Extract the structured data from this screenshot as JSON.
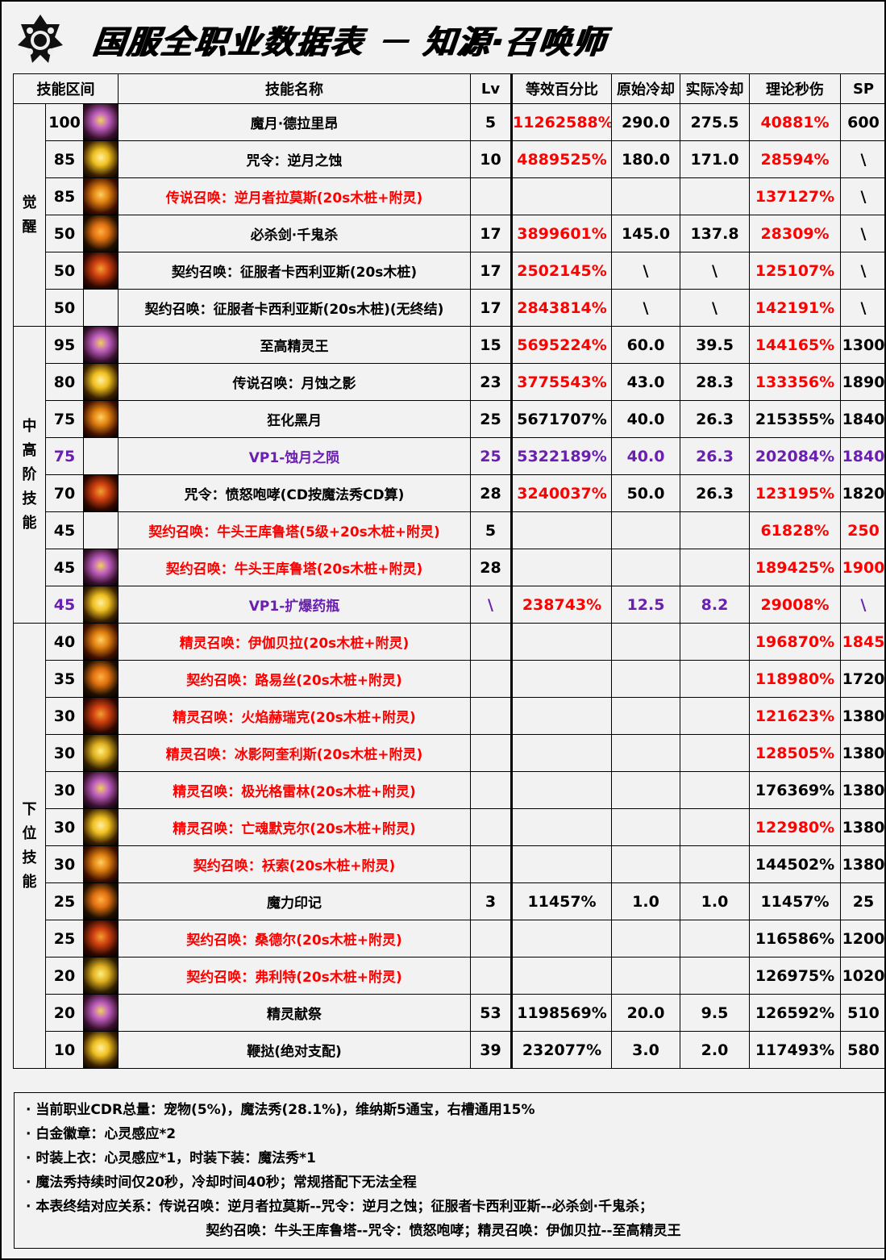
{
  "title": "国服全职业数据表 － 知源·召唤师",
  "columns": [
    "技能区间",
    "技能名称",
    "Lv",
    "等效百分比",
    "原始冷却",
    "实际冷却",
    "理论秒伤",
    "SP"
  ],
  "colors": {
    "red": "#ff0000",
    "purple": "#6a1fb0",
    "text": "#000000",
    "background": "#f2f2f2"
  },
  "sections": [
    {
      "label": "觉醒",
      "rows": 6
    },
    {
      "label": "中高阶技能",
      "rows": 8
    },
    {
      "label": "下位技能",
      "rows": 12
    }
  ],
  "rows": [
    {
      "level": "100",
      "icon": "purple-moon-icon",
      "name": "魔月·德拉里昂",
      "lv": "5",
      "pct": "11262588%",
      "ocd": "290.0",
      "acd": "275.5",
      "dps": "40881%",
      "sp": "600",
      "c": {
        "pct": "r",
        "dps": "r"
      }
    },
    {
      "level": "85",
      "icon": "gold-crescent-icon",
      "name": "咒令：逆月之蚀",
      "lv": "10",
      "pct": "4889525%",
      "ocd": "180.0",
      "acd": "171.0",
      "dps": "28594%",
      "sp": "\\",
      "c": {
        "pct": "r",
        "dps": "r"
      }
    },
    {
      "level": "85",
      "icon": "fire-swirl-icon",
      "name": "传说召唤：逆月者拉莫斯(20s木桩+附灵)",
      "lv": "",
      "pct": "",
      "ocd": "",
      "acd": "",
      "dps": "137127%",
      "sp": "\\",
      "c": {
        "name": "r",
        "dps": "r"
      }
    },
    {
      "level": "50",
      "icon": "sword-slash-icon",
      "name": "必杀剑·千鬼杀",
      "lv": "17",
      "pct": "3899601%",
      "ocd": "145.0",
      "acd": "137.8",
      "dps": "28309%",
      "sp": "\\",
      "c": {
        "pct": "r",
        "dps": "r"
      }
    },
    {
      "level": "50",
      "icon": "demon-face-icon",
      "name": "契约召唤：征服者卡西利亚斯(20s木桩)",
      "lv": "17",
      "pct": "2502145%",
      "ocd": "\\",
      "acd": "\\",
      "dps": "125107%",
      "sp": "\\",
      "c": {
        "pct": "r",
        "dps": "r"
      }
    },
    {
      "level": "50",
      "icon": "",
      "name": "契约召唤：征服者卡西利亚斯(20s木桩)(无终结)",
      "lv": "17",
      "pct": "2843814%",
      "ocd": "\\",
      "acd": "\\",
      "dps": "142191%",
      "sp": "\\",
      "c": {
        "pct": "r",
        "dps": "r"
      }
    },
    {
      "level": "95",
      "icon": "spirit-king-icon",
      "name": "至高精灵王",
      "lv": "15",
      "pct": "5695224%",
      "ocd": "60.0",
      "acd": "39.5",
      "dps": "144165%",
      "sp": "1300",
      "c": {
        "pct": "r",
        "dps": "r"
      }
    },
    {
      "level": "80",
      "icon": "eclipse-shadow-icon",
      "name": "传说召唤：月蚀之影",
      "lv": "23",
      "pct": "3775543%",
      "ocd": "43.0",
      "acd": "28.3",
      "dps": "133356%",
      "sp": "1890",
      "c": {
        "pct": "r",
        "dps": "r"
      }
    },
    {
      "level": "75",
      "icon": "dark-moon-icon",
      "name": "狂化黑月",
      "lv": "25",
      "pct": "5671707%",
      "ocd": "40.0",
      "acd": "26.3",
      "dps": "215355%",
      "sp": "1840",
      "c": {}
    },
    {
      "level": "75",
      "icon": "",
      "name": "VP1-蚀月之陨",
      "lv": "25",
      "pct": "5322189%",
      "ocd": "40.0",
      "acd": "26.3",
      "dps": "202084%",
      "sp": "1840",
      "c": {
        "level": "p",
        "name": "p",
        "lv": "p",
        "pct": "p",
        "ocd": "p",
        "acd": "p",
        "dps": "p",
        "sp": "p"
      }
    },
    {
      "level": "70",
      "icon": "roaring-beast-icon",
      "name": "咒令：愤怒咆哮(CD按魔法秀CD算)",
      "lv": "28",
      "pct": "3240037%",
      "ocd": "50.0",
      "acd": "26.3",
      "dps": "123195%",
      "sp": "1820",
      "c": {
        "pct": "r",
        "dps": "r"
      }
    },
    {
      "level": "45",
      "icon": "",
      "name": "契约召唤：牛头王库鲁塔(5级+20s木桩+附灵)",
      "lv": "5",
      "pct": "",
      "ocd": "",
      "acd": "",
      "dps": "61828%",
      "sp": "250",
      "c": {
        "name": "r",
        "dps": "r",
        "sp": "r"
      }
    },
    {
      "level": "45",
      "icon": "minotaur-icon",
      "name": "契约召唤：牛头王库鲁塔(20s木桩+附灵)",
      "lv": "28",
      "pct": "",
      "ocd": "",
      "acd": "",
      "dps": "189425%",
      "sp": "1900",
      "c": {
        "name": "r",
        "dps": "r",
        "sp": "r"
      }
    },
    {
      "level": "45",
      "icon": "potion-flame-icon",
      "name": "VP1-扩爆药瓶",
      "lv": "\\",
      "pct": "238743%",
      "ocd": "12.5",
      "acd": "8.2",
      "dps": "29008%",
      "sp": "\\",
      "c": {
        "level": "p",
        "name": "p",
        "lv": "p",
        "pct": "r",
        "ocd": "p",
        "acd": "p",
        "dps": "r",
        "sp": "p"
      }
    },
    {
      "level": "40",
      "icon": "crown-icon",
      "name": "精灵召唤：伊伽贝拉(20s木桩+附灵)",
      "lv": "",
      "pct": "",
      "ocd": "",
      "acd": "",
      "dps": "196870%",
      "sp": "1845",
      "c": {
        "name": "r",
        "dps": "r",
        "sp": "r"
      }
    },
    {
      "level": "35",
      "icon": "star-circle-icon",
      "name": "契约召唤：路易丝(20s木桩+附灵)",
      "lv": "",
      "pct": "",
      "ocd": "",
      "acd": "",
      "dps": "118980%",
      "sp": "1720",
      "c": {
        "name": "r",
        "dps": "r"
      }
    },
    {
      "level": "30",
      "icon": "fire-spirit-icon",
      "name": "精灵召唤：火焰赫瑞克(20s木桩+附灵)",
      "lv": "",
      "pct": "",
      "ocd": "",
      "acd": "",
      "dps": "121623%",
      "sp": "1380",
      "c": {
        "name": "r",
        "dps": "r"
      }
    },
    {
      "level": "30",
      "icon": "ice-spirit-icon",
      "name": "精灵召唤：冰影阿奎利斯(20s木桩+附灵)",
      "lv": "",
      "pct": "",
      "ocd": "",
      "acd": "",
      "dps": "128505%",
      "sp": "1380",
      "c": {
        "name": "r",
        "dps": "r"
      }
    },
    {
      "level": "30",
      "icon": "light-spirit-icon",
      "name": "精灵召唤：极光格雷林(20s木桩+附灵)",
      "lv": "",
      "pct": "",
      "ocd": "",
      "acd": "",
      "dps": "176369%",
      "sp": "1380",
      "c": {
        "name": "r"
      }
    },
    {
      "level": "30",
      "icon": "dark-spirit-icon",
      "name": "精灵召唤：亡魂默克尔(20s木桩+附灵)",
      "lv": "",
      "pct": "",
      "ocd": "",
      "acd": "",
      "dps": "122980%",
      "sp": "1380",
      "c": {
        "name": "r",
        "dps": "r"
      }
    },
    {
      "level": "30",
      "icon": "flower-rune-icon",
      "name": "契约召唤：袄索(20s木桩+附灵)",
      "lv": "",
      "pct": "",
      "ocd": "",
      "acd": "",
      "dps": "144502%",
      "sp": "1380",
      "c": {
        "name": "r"
      }
    },
    {
      "level": "25",
      "icon": "magic-mark-icon",
      "name": "魔力印记",
      "lv": "3",
      "pct": "11457%",
      "ocd": "1.0",
      "acd": "1.0",
      "dps": "11457%",
      "sp": "25",
      "c": {}
    },
    {
      "level": "25",
      "icon": "shield-icon",
      "name": "契约召唤：桑德尔(20s木桩+附灵)",
      "lv": "",
      "pct": "",
      "ocd": "",
      "acd": "",
      "dps": "116586%",
      "sp": "1200",
      "c": {
        "name": "r"
      }
    },
    {
      "level": "20",
      "icon": "bird-icon",
      "name": "契约召唤：弗利特(20s木桩+附灵)",
      "lv": "",
      "pct": "",
      "ocd": "",
      "acd": "",
      "dps": "126975%",
      "sp": "1020",
      "c": {
        "name": "r"
      }
    },
    {
      "level": "20",
      "icon": "starburst-icon",
      "name": "精灵献祭",
      "lv": "53",
      "pct": "1198569%",
      "ocd": "20.0",
      "acd": "9.5",
      "dps": "126592%",
      "sp": "510",
      "c": {}
    },
    {
      "level": "10",
      "icon": "whip-icon",
      "name": "鞭挞(绝对支配)",
      "lv": "39",
      "pct": "232077%",
      "ocd": "3.0",
      "acd": "2.0",
      "dps": "117493%",
      "sp": "580",
      "c": {}
    }
  ],
  "notes": [
    "· 当前职业CDR总量：宠物(5%)，魔法秀(28.1%)，维纳斯5通宝，右槽通用15%",
    "· 白金徽章：心灵感应*2",
    "· 时装上衣：心灵感应*1，时装下装：魔法秀*1",
    "· 魔法秀持续时间仅20秒，冷却时间40秒；常规搭配下无法全程",
    "· 本表终结对应关系：传说召唤：逆月者拉莫斯--咒令：逆月之蚀；征服者卡西利亚斯--必杀剑·千鬼杀；",
    "契约召唤：牛头王库鲁塔--咒令：愤怒咆哮；精灵召唤：伊伽贝拉--至高精灵王"
  ]
}
